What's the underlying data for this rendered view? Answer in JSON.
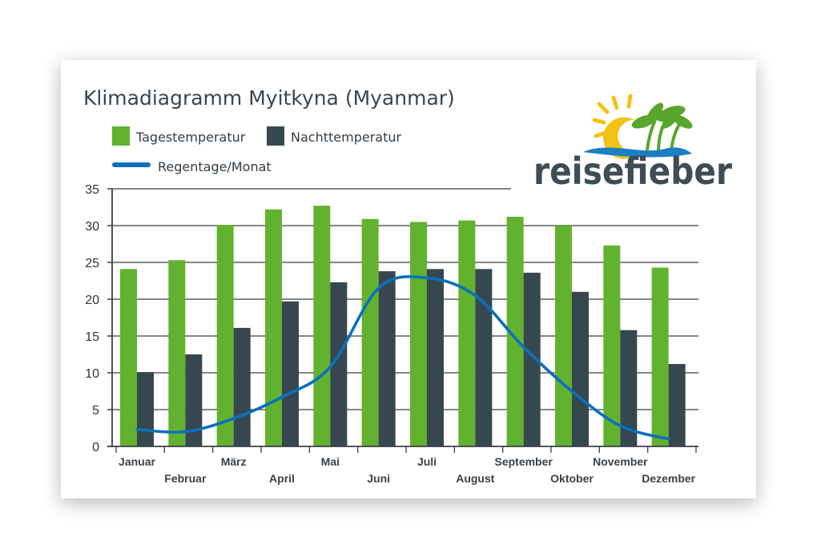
{
  "colors": {
    "day": "#62b22f",
    "night": "#37474f",
    "rain": "#0a70bd",
    "grid": "#3a3f44",
    "brand_dark": "#3d4c55"
  },
  "logo": {
    "text": "reisefieber",
    "icon": "sun-palm-logo-icon"
  },
  "chart_data": {
    "type": "bar",
    "title": "Klimadiagramm Myitkyna (Myanmar)",
    "categories": [
      "Januar",
      "Februar",
      "März",
      "April",
      "Mai",
      "Juni",
      "Juli",
      "August",
      "September",
      "Oktober",
      "November",
      "Dezember"
    ],
    "series": [
      {
        "name": "Tagestemperatur",
        "type": "bar",
        "values": [
          24.1,
          25.3,
          30.1,
          32.2,
          32.7,
          30.9,
          30.5,
          30.7,
          31.2,
          30.0,
          27.3,
          24.3
        ]
      },
      {
        "name": "Nachttemperatur",
        "type": "bar",
        "values": [
          10.1,
          12.5,
          16.1,
          19.7,
          22.3,
          23.8,
          24.1,
          24.1,
          23.6,
          21.0,
          15.8,
          11.2
        ]
      },
      {
        "name": "Regentage/Monat",
        "type": "line",
        "values": [
          2.3,
          2.0,
          3.8,
          6.7,
          10.8,
          21.5,
          22.9,
          20.5,
          13.5,
          7.5,
          2.8,
          1.0
        ]
      }
    ],
    "xlabel": "",
    "ylabel": "",
    "ylim": [
      0,
      35
    ],
    "yticks": [
      "0",
      "5",
      "10",
      "15",
      "20",
      "25",
      "30",
      "35"
    ],
    "grid": true,
    "legend": "top-left"
  }
}
